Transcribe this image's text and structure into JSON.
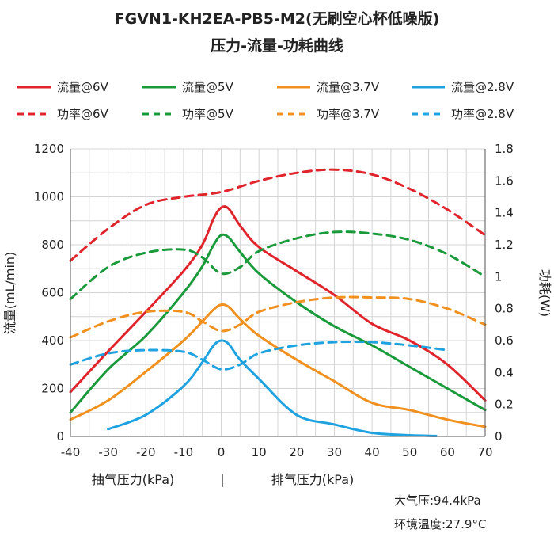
{
  "chart_data": {
    "type": "line",
    "title": "FGVN1-KH2EA-PB5-M2(无刷空心杯低噪版)",
    "subtitle": "压力-流量-功耗曲线",
    "ylabel": "流量(mL/min)",
    "y2label": "功耗(W)",
    "xlabel_left": "抽气压力(kPa)",
    "xlabel_sep": "|",
    "xlabel_right": "排气压力(kPa)",
    "xlim": [
      -40,
      70
    ],
    "ylim": [
      0,
      1200
    ],
    "y2lim": [
      0,
      1.8
    ],
    "xticks": [
      -40,
      -30,
      -20,
      -10,
      0,
      10,
      20,
      30,
      40,
      50,
      60,
      70
    ],
    "yticks": [
      0,
      200,
      400,
      600,
      800,
      1000,
      1200
    ],
    "y2ticks": [
      "0",
      "0.2",
      "0.4",
      "0.6",
      "0.8",
      "1",
      "1.2",
      "1.4",
      "1.6",
      "1.8"
    ],
    "grid": true,
    "legend_position": "top",
    "series": [
      {
        "name": "流量@6V",
        "axis": "left",
        "style": "solid",
        "color": "#e0242b",
        "x": [
          -40,
          -30,
          -20,
          -10,
          -5,
          -2,
          0,
          2,
          5,
          10,
          20,
          30,
          40,
          50,
          60,
          70
        ],
        "y": [
          185,
          355,
          520,
          690,
          800,
          910,
          955,
          950,
          880,
          790,
          690,
          590,
          470,
          400,
          300,
          150
        ]
      },
      {
        "name": "流量@5V",
        "axis": "left",
        "style": "solid",
        "color": "#1a9a3a",
        "x": [
          -40,
          -30,
          -20,
          -10,
          -5,
          -2,
          0,
          2,
          5,
          10,
          20,
          30,
          40,
          50,
          60,
          70
        ],
        "y": [
          100,
          280,
          420,
          600,
          710,
          800,
          840,
          830,
          770,
          680,
          560,
          460,
          380,
          290,
          200,
          110
        ]
      },
      {
        "name": "流量@3.7V",
        "axis": "left",
        "style": "solid",
        "color": "#f0901e",
        "x": [
          -40,
          -30,
          -20,
          -10,
          -5,
          -2,
          0,
          2,
          5,
          10,
          20,
          30,
          40,
          50,
          60,
          70
        ],
        "y": [
          70,
          150,
          270,
          400,
          480,
          530,
          550,
          540,
          490,
          420,
          320,
          230,
          140,
          110,
          70,
          40
        ]
      },
      {
        "name": "流量@2.8V",
        "axis": "left",
        "style": "solid",
        "color": "#1ea2e0",
        "x": [
          -30,
          -20,
          -10,
          -5,
          -2,
          0,
          2,
          5,
          10,
          20,
          30,
          40,
          50,
          57
        ],
        "y": [
          30,
          90,
          210,
          310,
          380,
          400,
          385,
          320,
          240,
          90,
          50,
          15,
          5,
          2
        ]
      },
      {
        "name": "功率@6V",
        "axis": "right",
        "style": "dashed",
        "color": "#e0242b",
        "x": [
          -40,
          -30,
          -20,
          -10,
          0,
          10,
          20,
          30,
          40,
          50,
          60,
          70
        ],
        "y": [
          1.1,
          1.3,
          1.45,
          1.5,
          1.53,
          1.6,
          1.65,
          1.67,
          1.64,
          1.55,
          1.42,
          1.26
        ]
      },
      {
        "name": "功率@5V",
        "axis": "right",
        "style": "dashed",
        "color": "#1a9a3a",
        "x": [
          -40,
          -30,
          -20,
          -10,
          -5,
          0,
          5,
          10,
          20,
          30,
          40,
          50,
          60,
          70
        ],
        "y": [
          0.86,
          1.06,
          1.15,
          1.17,
          1.12,
          1.02,
          1.06,
          1.16,
          1.24,
          1.28,
          1.27,
          1.23,
          1.14,
          1.0
        ]
      },
      {
        "name": "功率@3.7V",
        "axis": "right",
        "style": "dashed",
        "color": "#f0901e",
        "x": [
          -40,
          -30,
          -20,
          -10,
          -5,
          0,
          5,
          10,
          20,
          30,
          40,
          50,
          60,
          70
        ],
        "y": [
          0.62,
          0.72,
          0.78,
          0.78,
          0.72,
          0.66,
          0.7,
          0.78,
          0.84,
          0.87,
          0.87,
          0.86,
          0.8,
          0.7
        ]
      },
      {
        "name": "功率@2.8V",
        "axis": "right",
        "style": "dashed",
        "color": "#1ea2e0",
        "x": [
          -40,
          -30,
          -20,
          -10,
          -5,
          0,
          5,
          10,
          20,
          30,
          40,
          50,
          60
        ],
        "y": [
          0.45,
          0.52,
          0.54,
          0.53,
          0.48,
          0.42,
          0.45,
          0.52,
          0.57,
          0.59,
          0.59,
          0.57,
          0.54
        ]
      }
    ],
    "annotations": [
      "大气压:94.4kPa",
      "环境温度:27.9°C"
    ]
  }
}
